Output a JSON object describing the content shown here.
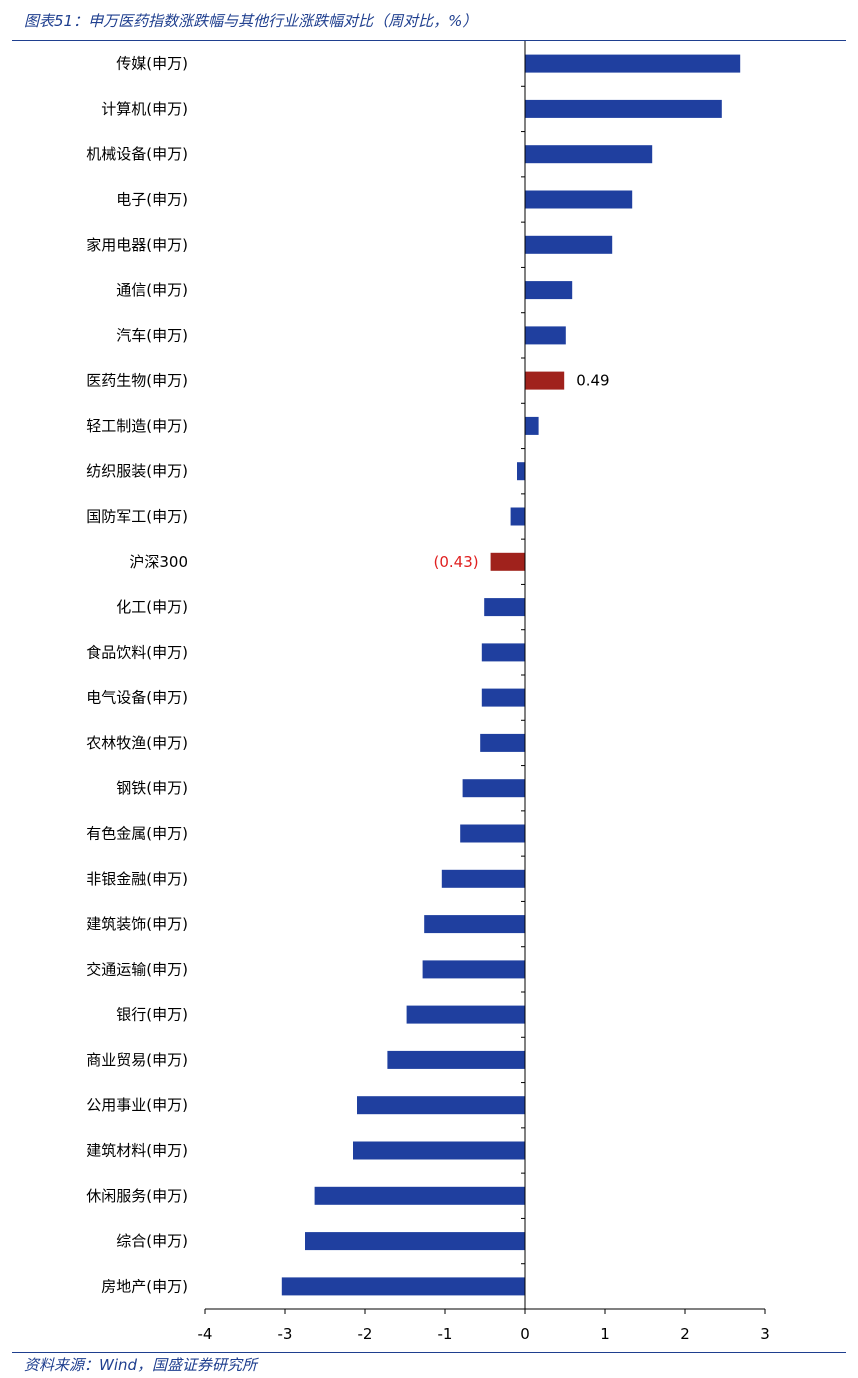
{
  "figure": {
    "title": "图表51：申万医药指数涨跌幅与其他行业涨跌幅对比（周对比，%）",
    "source": "资料来源：Wind，国盛证券研究所"
  },
  "colors": {
    "default_bar": "#1f3f9f",
    "highlight_bar": "#a0221c",
    "positive_label": "#000000",
    "negative_label": "#e02020",
    "axis": "#000000",
    "title": "#1f3f8f"
  },
  "chart_data": {
    "type": "bar",
    "orientation": "horizontal",
    "title": "图表51：申万医药指数涨跌幅与其他行业涨跌幅对比（周对比，%）",
    "xlabel": "",
    "ylabel": "",
    "xlim": [
      -4,
      3
    ],
    "xticks": [
      "-4",
      "-3",
      "-2",
      "-1",
      "0",
      "1",
      "2",
      "3"
    ],
    "grid": false,
    "legend": "none",
    "categories": [
      "传媒(申万)",
      "计算机(申万)",
      "机械设备(申万)",
      "电子(申万)",
      "家用电器(申万)",
      "通信(申万)",
      "汽车(申万)",
      "医药生物(申万)",
      "轻工制造(申万)",
      "纺织服装(申万)",
      "国防军工(申万)",
      "沪深300",
      "化工(申万)",
      "食品饮料(申万)",
      "电气设备(申万)",
      "农林牧渔(申万)",
      "钢铁(申万)",
      "有色金属(申万)",
      "非银金融(申万)",
      "建筑装饰(申万)",
      "交通运输(申万)",
      "银行(申万)",
      "商业贸易(申万)",
      "公用事业(申万)",
      "建筑材料(申万)",
      "休闲服务(申万)",
      "综合(申万)",
      "房地产(申万)"
    ],
    "values": [
      2.69,
      2.46,
      1.59,
      1.34,
      1.09,
      0.59,
      0.51,
      0.49,
      0.17,
      -0.1,
      -0.18,
      -0.43,
      -0.51,
      -0.54,
      -0.54,
      -0.56,
      -0.78,
      -0.81,
      -1.04,
      -1.26,
      -1.28,
      -1.48,
      -1.72,
      -2.1,
      -2.15,
      -2.63,
      -2.75,
      -3.04
    ],
    "highlighted": [
      "医药生物(申万)",
      "沪深300"
    ],
    "data_labels": [
      {
        "category": "医药生物(申万)",
        "text": "0.49"
      },
      {
        "category": "沪深300",
        "text": "(0.43)"
      }
    ]
  }
}
